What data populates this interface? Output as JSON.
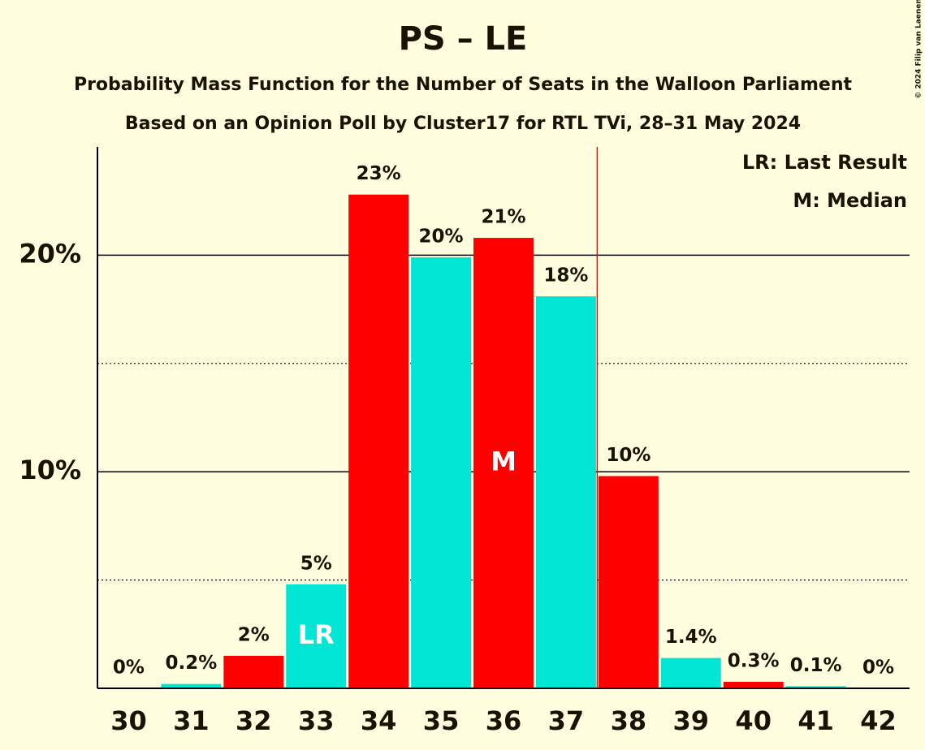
{
  "chart_data": {
    "type": "bar",
    "title": "PS – LE",
    "subtitle": "Probability Mass Function for the Number of Seats in the Walloon Parliament",
    "subtitle2": "Based on an Opinion Poll by Cluster17 for RTL TVi, 28–31 May 2024",
    "copyright": "© 2024 Filip van Laenen",
    "categories": [
      "30",
      "31",
      "32",
      "33",
      "34",
      "35",
      "36",
      "37",
      "38",
      "39",
      "40",
      "41",
      "42"
    ],
    "values": [
      0,
      0.2,
      1.5,
      4.8,
      22.8,
      19.9,
      20.8,
      18.1,
      9.8,
      1.4,
      0.3,
      0.1,
      0
    ],
    "value_labels": [
      "0%",
      "0.2%",
      "2%",
      "5%",
      "23%",
      "20%",
      "21%",
      "18%",
      "10%",
      "1.4%",
      "0.3%",
      "0.1%",
      "0%"
    ],
    "colors": [
      "#ff0000",
      "#00e5d4",
      "#ff0000",
      "#00e5d4",
      "#ff0000",
      "#00e5d4",
      "#ff0000",
      "#00e5d4",
      "#ff0000",
      "#00e5d4",
      "#ff0000",
      "#00e5d4",
      "#ff0000"
    ],
    "ylim": [
      0,
      25
    ],
    "yticks": [
      {
        "value": 10,
        "label": "10%"
      },
      {
        "value": 20,
        "label": "20%"
      }
    ],
    "minor_yticks": [
      5,
      15
    ],
    "grid": true,
    "majority_line": 37.5,
    "markers": [
      {
        "text": "LR",
        "category": "33"
      },
      {
        "text": "M",
        "category": "36"
      }
    ],
    "legend": [
      "LR: Last Result",
      "M: Median"
    ],
    "legend_position": "top-right"
  }
}
